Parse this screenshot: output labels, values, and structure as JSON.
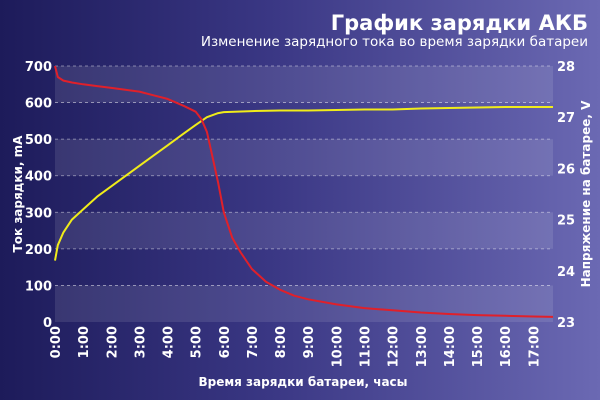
{
  "chart_data": {
    "type": "line",
    "title": "График зарядки АКБ",
    "subtitle": "Изменение зарядного тока во время зарядки батареи",
    "xlabel": "Время зарядки батареи, часы",
    "ylabel_left": "Ток зарядки, mA",
    "ylabel_right": "Напряжение на батарее, V",
    "x_ticks": [
      "0:00",
      "1:00",
      "2:00",
      "3:00",
      "4:00",
      "5:00",
      "6:00",
      "7:00",
      "8:00",
      "9:00",
      "10:00",
      "11:00",
      "12:00",
      "13:00",
      "14:00",
      "15:00",
      "16:00",
      "17:00"
    ],
    "y_left_ticks": [
      "0",
      "100",
      "200",
      "300",
      "400",
      "500",
      "600",
      "700"
    ],
    "y_right_ticks": [
      "23",
      "24",
      "25",
      "26",
      "27",
      "28"
    ],
    "xlim_hours": [
      0,
      17.7
    ],
    "ylim_left": [
      0,
      700
    ],
    "ylim_right": [
      23,
      28
    ],
    "grid": "horizontal bands",
    "colors": {
      "current": "#e0202a",
      "voltage": "#f0ec1a"
    },
    "series": [
      {
        "axis": "left",
        "x": [
          0,
          0.1,
          0.3,
          0.6,
          1,
          1.5,
          2,
          2.5,
          3,
          3.5,
          4,
          4.3,
          4.6,
          5,
          5.2,
          5.4,
          5.6,
          5.8,
          6,
          6.3,
          6.6,
          7,
          7.5,
          8,
          8.5,
          9,
          10,
          11,
          12,
          13,
          14,
          15,
          16,
          17,
          17.7
        ],
        "values": [
          700,
          670,
          660,
          655,
          650,
          645,
          640,
          635,
          630,
          620,
          610,
          600,
          590,
          575,
          555,
          520,
          450,
          380,
          300,
          230,
          190,
          145,
          110,
          88,
          72,
          62,
          48,
          38,
          32,
          26,
          22,
          19,
          17,
          15,
          14
        ]
      },
      {
        "axis": "right",
        "x": [
          0,
          0.1,
          0.3,
          0.6,
          1,
          1.5,
          2,
          2.5,
          3,
          3.5,
          4,
          4.5,
          5,
          5.4,
          5.8,
          6,
          6.5,
          7,
          8,
          9,
          10,
          11,
          12,
          13,
          14,
          15,
          16,
          17,
          17.7
        ],
        "values": [
          24.2,
          24.5,
          24.75,
          25.0,
          25.2,
          25.45,
          25.65,
          25.85,
          26.05,
          26.25,
          26.45,
          26.65,
          26.85,
          27.0,
          27.08,
          27.1,
          27.11,
          27.12,
          27.13,
          27.13,
          27.14,
          27.15,
          27.15,
          27.17,
          27.18,
          27.19,
          27.2,
          27.2,
          27.2
        ]
      }
    ]
  }
}
